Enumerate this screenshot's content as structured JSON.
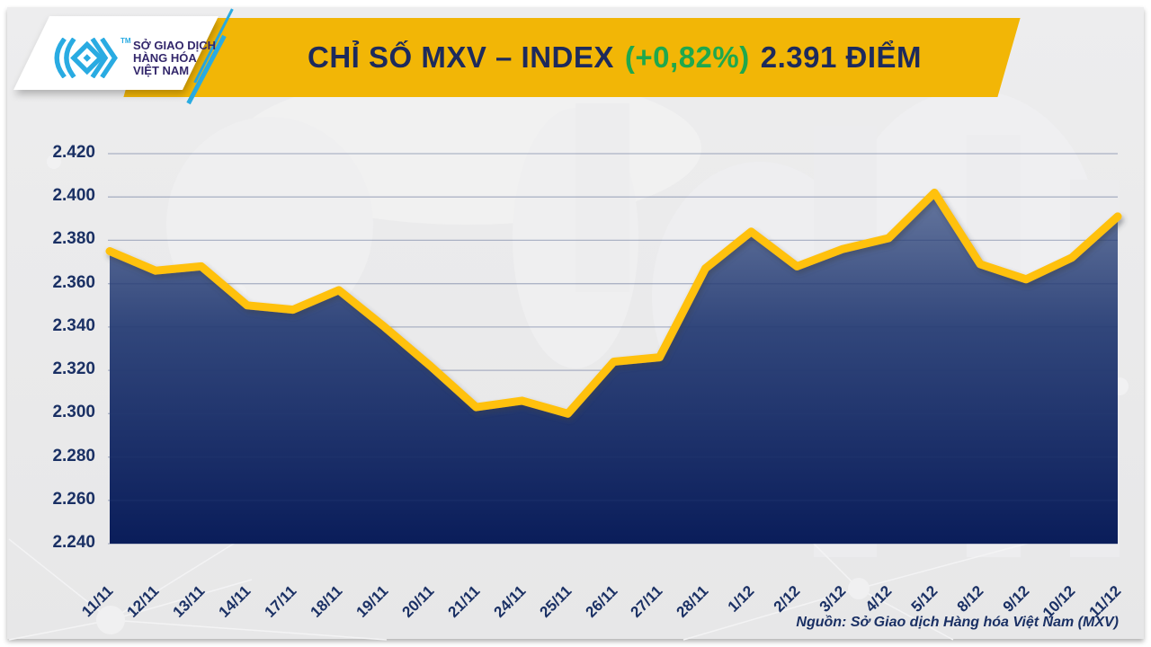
{
  "header": {
    "title_main": "CHỈ SỐ MXV – INDEX",
    "title_change": "(+0,82%)",
    "title_value": "2.391 ĐIỂM",
    "banner_color": "#f2b606",
    "title_color": "#1d2a5c",
    "change_color": "#1fa84d"
  },
  "logo": {
    "tm": "TM",
    "line1": "SỞ GIAO DỊCH",
    "line2": "HÀNG HÓA",
    "line3": "VIỆT NAM",
    "mark_color": "#29abe2"
  },
  "footer": {
    "source": "Nguồn: Sở Giao dịch Hàng hóa Việt Nam (MXV)"
  },
  "chart_data": {
    "type": "area",
    "title": "CHỈ SỐ MXV – INDEX (+0,82%) 2.391 ĐIỂM",
    "unit": "điểm",
    "categories": [
      "11/11",
      "12/11",
      "13/11",
      "14/11",
      "17/11",
      "18/11",
      "19/11",
      "20/11",
      "21/11",
      "24/11",
      "25/11",
      "26/11",
      "27/11",
      "28/11",
      "1/12",
      "2/12",
      "3/12",
      "4/12",
      "5/12",
      "8/12",
      "9/12",
      "10/12",
      "11/12"
    ],
    "values": [
      2375,
      2366,
      2368,
      2350,
      2348,
      2357,
      2340,
      2322,
      2303,
      2306,
      2300,
      2324,
      2326,
      2367,
      2384,
      2368,
      2376,
      2381,
      2402,
      2369,
      2362,
      2372,
      2391
    ],
    "ylim": [
      2240,
      2420
    ],
    "ticks": [
      2420,
      2400,
      2380,
      2360,
      2340,
      2320,
      2300,
      2280,
      2260,
      2240
    ],
    "tick_labels": [
      "2.420",
      "2.400",
      "2.380",
      "2.360",
      "2.340",
      "2.320",
      "2.300",
      "2.280",
      "2.260",
      "2.240"
    ],
    "grid": "horizontal",
    "legend": "none",
    "line_color": "#ffc110",
    "fill_gradient_top": "#7484a8",
    "fill_gradient_bottom": "#0a1d5a",
    "last_point_label": "2.391",
    "change_percent": "+0,82%"
  }
}
